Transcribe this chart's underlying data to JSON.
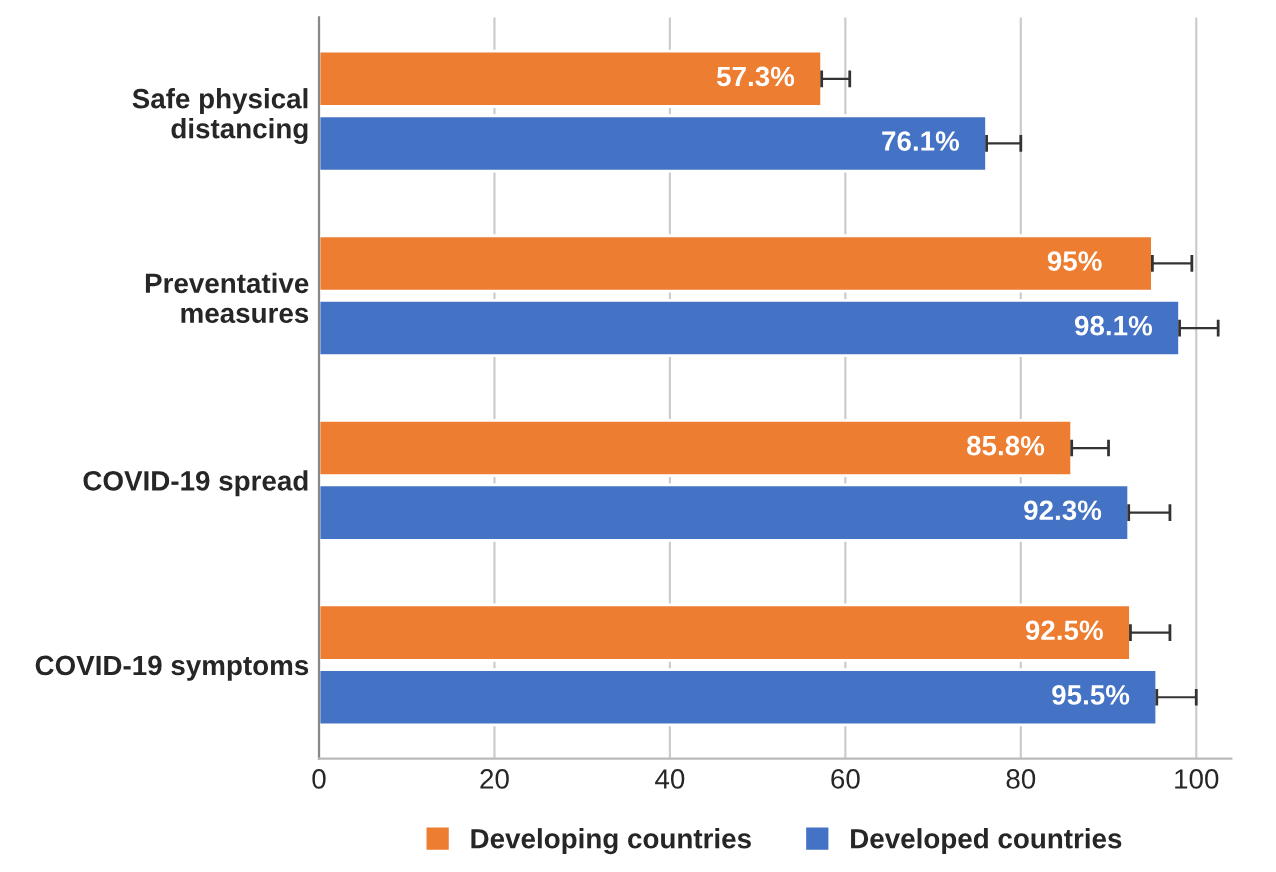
{
  "chart_data": {
    "type": "bar",
    "orientation": "horizontal",
    "categories": [
      "Safe physical\ndistancing",
      "Preventative\nmeasures",
      "COVID-19 spread",
      "COVID-19 symptoms"
    ],
    "series": [
      {
        "name": "Developing countries",
        "color": "#ed7d31",
        "values": [
          57.3,
          95,
          85.8,
          92.5
        ],
        "value_labels": [
          "57.3%",
          "95%",
          "85.8%",
          "92.5%"
        ],
        "errors": [
          [
            57.3,
            60.5
          ],
          [
            95,
            99.5
          ],
          [
            85.8,
            90
          ],
          [
            92.5,
            97
          ]
        ]
      },
      {
        "name": "Developed countries",
        "color": "#4472c4",
        "values": [
          76.1,
          98.1,
          92.3,
          95.5
        ],
        "value_labels": [
          "76.1%",
          "98.1%",
          "92.3%",
          "95.5%"
        ],
        "errors": [
          [
            76.1,
            80
          ],
          [
            98.1,
            102.5
          ],
          [
            92.3,
            97
          ],
          [
            95.5,
            100
          ]
        ]
      }
    ],
    "xlim": [
      0,
      104
    ],
    "xticks": [
      0,
      20,
      40,
      60,
      80,
      100
    ],
    "grid": "x",
    "legend": "bottom"
  }
}
